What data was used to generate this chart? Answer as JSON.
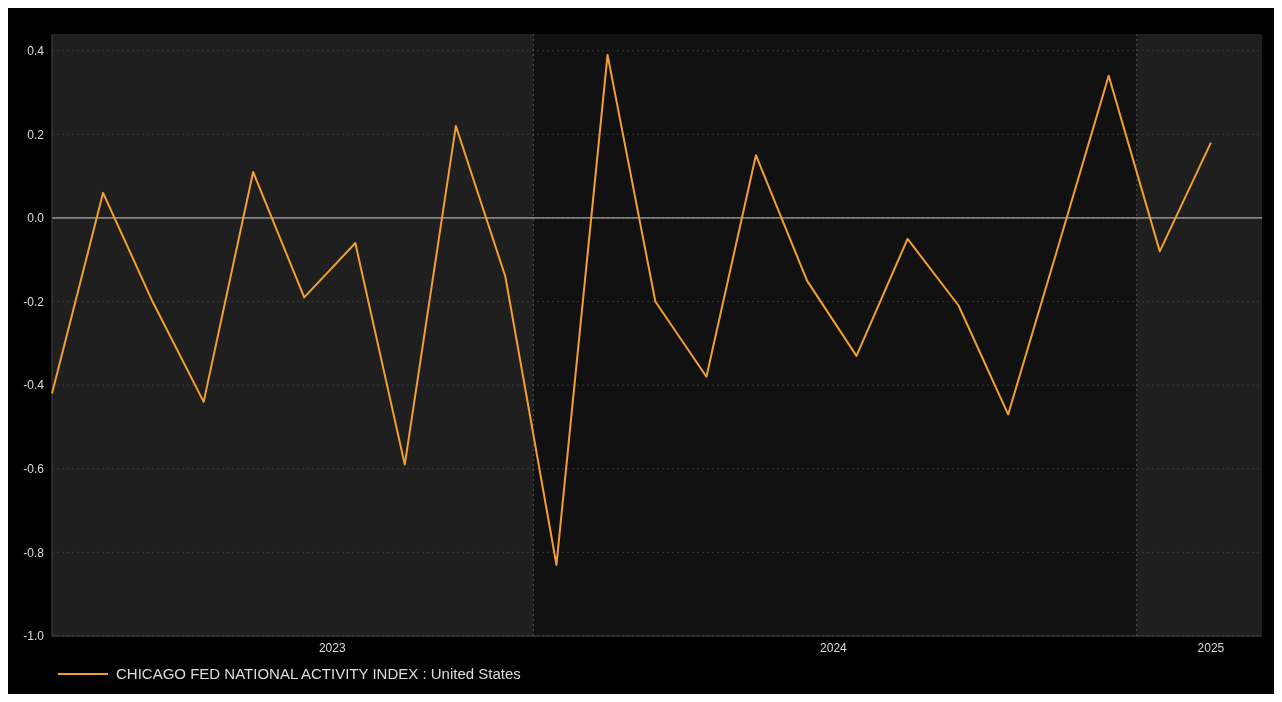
{
  "chart_data": {
    "type": "line",
    "x": [
      "2023-03-15",
      "2023-04-15",
      "2023-05-15",
      "2023-06-15",
      "2023-07-15",
      "2023-08-15",
      "2023-09-15",
      "2023-10-15",
      "2023-11-15",
      "2023-12-15",
      "2024-01-15",
      "2024-02-15",
      "2024-03-15",
      "2024-04-15",
      "2024-05-15",
      "2024-06-15",
      "2024-07-15",
      "2024-08-15",
      "2024-09-15",
      "2024-10-15",
      "2024-11-15",
      "2024-12-15",
      "2025-01-15",
      "2025-02-15"
    ],
    "series": [
      {
        "name": "CHICAGO FED NATIONAL ACTIVITY INDEX : United States",
        "color": "#f0a030",
        "values": [
          -0.42,
          0.06,
          -0.2,
          -0.44,
          0.11,
          -0.19,
          -0.06,
          -0.59,
          0.22,
          -0.14,
          -0.83,
          0.39,
          -0.2,
          -0.38,
          0.15,
          -0.15,
          -0.33,
          -0.05,
          -0.21,
          -0.47,
          -0.06,
          0.34,
          -0.08,
          0.18
        ]
      }
    ],
    "xlim": [
      "2023-03-15",
      "2025-03-18"
    ],
    "xticks": [
      {
        "value": "2023-09-01",
        "label": "2023"
      },
      {
        "value": "2024-07-01",
        "label": "2024"
      },
      {
        "value": "2025-02-15",
        "label": "2025"
      }
    ],
    "ylim": [
      -1.0,
      0.44
    ],
    "yticks": [
      {
        "value": -1,
        "label": "-1.0"
      },
      -0.8,
      -0.6,
      -0.4,
      -0.2,
      {
        "value": 0,
        "label": "0.0"
      },
      0.2,
      0.4
    ],
    "grid": "y",
    "bands": [
      {
        "axis": "x",
        "from": "2023-03-15",
        "to": "2024-01-01",
        "color": "#1f1f1f"
      },
      {
        "axis": "x",
        "from": "2025-01-01",
        "to": "2025-03-18",
        "color": "#1f1f1f"
      }
    ],
    "ref_lines": [
      {
        "axis": "x",
        "value": "2024-01-01",
        "color": "#555555",
        "line_style": "dotted"
      },
      {
        "axis": "x",
        "value": "2025-01-01",
        "color": "#555555",
        "line_style": "dotted"
      },
      {
        "axis": "y",
        "value": 0,
        "color": "#cccccc",
        "line_style": "solid"
      }
    ],
    "legend": "bottom left",
    "marker": "none",
    "line_style": "solid"
  }
}
